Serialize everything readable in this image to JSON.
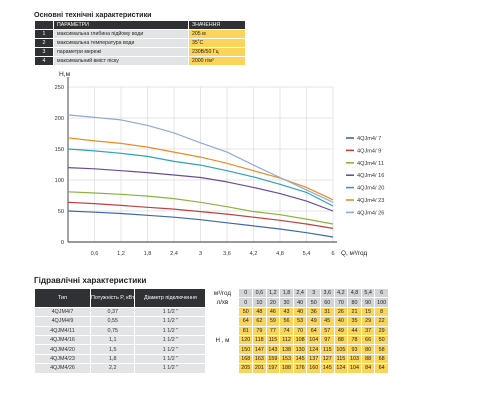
{
  "specs": {
    "title": "Основні технічні характеристики",
    "header_param": "ПАРАМЕТРИ",
    "header_value": "ЗНАЧЕННЯ",
    "rows": [
      {
        "n": "1",
        "param": "максимальна глибина підйому води",
        "value": "205 м"
      },
      {
        "n": "2",
        "param": "максимальна температура води",
        "value": "35˚C"
      },
      {
        "n": "3",
        "param": "параметри мережі",
        "value": "230В/50 Гц"
      },
      {
        "n": "4",
        "param": "максимальний вміст піску",
        "value": "2000 г/м³"
      }
    ]
  },
  "chart_data": {
    "type": "line",
    "ylabel": "H,м",
    "xlabel": "Q, м³/год",
    "xlim": [
      0,
      6
    ],
    "ylim": [
      0,
      250
    ],
    "x_ticks": [
      "0,6",
      "1,2",
      "1,8",
      "2,4",
      "3",
      "3,6",
      "4,2",
      "4,8",
      "5,4",
      "6"
    ],
    "y_ticks": [
      "0",
      "50",
      "100",
      "150",
      "200",
      "250"
    ],
    "legend_position": "right",
    "x": [
      0,
      0.6,
      1.2,
      1.8,
      2.4,
      3,
      3.6,
      4.2,
      4.8,
      5.4,
      6
    ],
    "series": [
      {
        "name": "4QJm4/ 7",
        "color": "#3f67b3",
        "values": [
          50,
          48,
          46,
          43,
          40,
          36,
          31,
          26,
          21,
          15,
          8
        ]
      },
      {
        "name": "4QJm4/ 9",
        "color": "#bf4040",
        "values": [
          64,
          62,
          59,
          56,
          53,
          49,
          45,
          40,
          35,
          29,
          22
        ]
      },
      {
        "name": "4QJm4/ 11",
        "color": "#8cb43c",
        "values": [
          81,
          79,
          77,
          74,
          70,
          64,
          57,
          49,
          44,
          37,
          29
        ]
      },
      {
        "name": "4QJm4/ 16",
        "color": "#6a4c9c",
        "values": [
          120,
          118,
          115,
          112,
          108,
          104,
          97,
          88,
          78,
          66,
          50
        ]
      },
      {
        "name": "4QJm4/ 20",
        "color": "#2ea3b8",
        "values": [
          150,
          147,
          143,
          138,
          130,
          124,
          115,
          105,
          93,
          80,
          58
        ]
      },
      {
        "name": "4QJm4/ 23",
        "color": "#f08a24",
        "values": [
          168,
          163,
          159,
          153,
          145,
          137,
          127,
          115,
          103,
          88,
          68
        ]
      },
      {
        "name": "4QJm4/ 26",
        "color": "#92a9d8",
        "values": [
          205,
          201,
          197,
          188,
          176,
          160,
          145,
          124,
          104,
          84,
          64
        ]
      }
    ]
  },
  "perf": {
    "title": "Гідравлічні характеристики",
    "col_type": "Тип",
    "col_power": "Потужність P, кВт",
    "col_diam": "Діаметр підключення",
    "q_unit": "м³/год",
    "q_unit2": "л/хв",
    "h_unit": "Н , м",
    "q_m3": [
      "0",
      "0,6",
      "1,2",
      "1,8",
      "2,4",
      "3",
      "3,6",
      "4,2",
      "4,8",
      "5,4",
      "6"
    ],
    "q_lmin": [
      "0",
      "10",
      "20",
      "30",
      "40",
      "50",
      "60",
      "70",
      "80",
      "90",
      "100"
    ],
    "rows": [
      {
        "type": "4QJM4/7",
        "power": "0,37",
        "diam": "1 1/2 \"",
        "h": [
          "50",
          "48",
          "46",
          "43",
          "40",
          "36",
          "31",
          "26",
          "21",
          "15",
          "8"
        ]
      },
      {
        "type": "4QJM4/9",
        "power": "0,55",
        "diam": "1 1/2 \"",
        "h": [
          "64",
          "62",
          "59",
          "56",
          "53",
          "49",
          "45",
          "40",
          "35",
          "29",
          "22"
        ]
      },
      {
        "type": "4QJM4/11",
        "power": "0,75",
        "diam": "1 1/2 \"",
        "h": [
          "81",
          "79",
          "77",
          "74",
          "70",
          "64",
          "57",
          "49",
          "44",
          "37",
          "29"
        ]
      },
      {
        "type": "4QJM4/16",
        "power": "1,1",
        "diam": "1 1/2 \"",
        "h": [
          "120",
          "118",
          "115",
          "112",
          "108",
          "104",
          "97",
          "88",
          "78",
          "66",
          "50"
        ]
      },
      {
        "type": "4QJM4/20",
        "power": "1,5",
        "diam": "1 1/2 \"",
        "h": [
          "150",
          "147",
          "143",
          "138",
          "130",
          "124",
          "115",
          "105",
          "93",
          "80",
          "58"
        ]
      },
      {
        "type": "4QJM4/23",
        "power": "1,8",
        "diam": "1 1/2 \"",
        "h": [
          "168",
          "163",
          "159",
          "153",
          "145",
          "137",
          "127",
          "115",
          "103",
          "88",
          "68"
        ]
      },
      {
        "type": "4QJM4/26",
        "power": "2,2",
        "diam": "1 1/2 \"",
        "h": [
          "205",
          "201",
          "197",
          "188",
          "176",
          "160",
          "145",
          "124",
          "104",
          "84",
          "64"
        ]
      }
    ]
  }
}
